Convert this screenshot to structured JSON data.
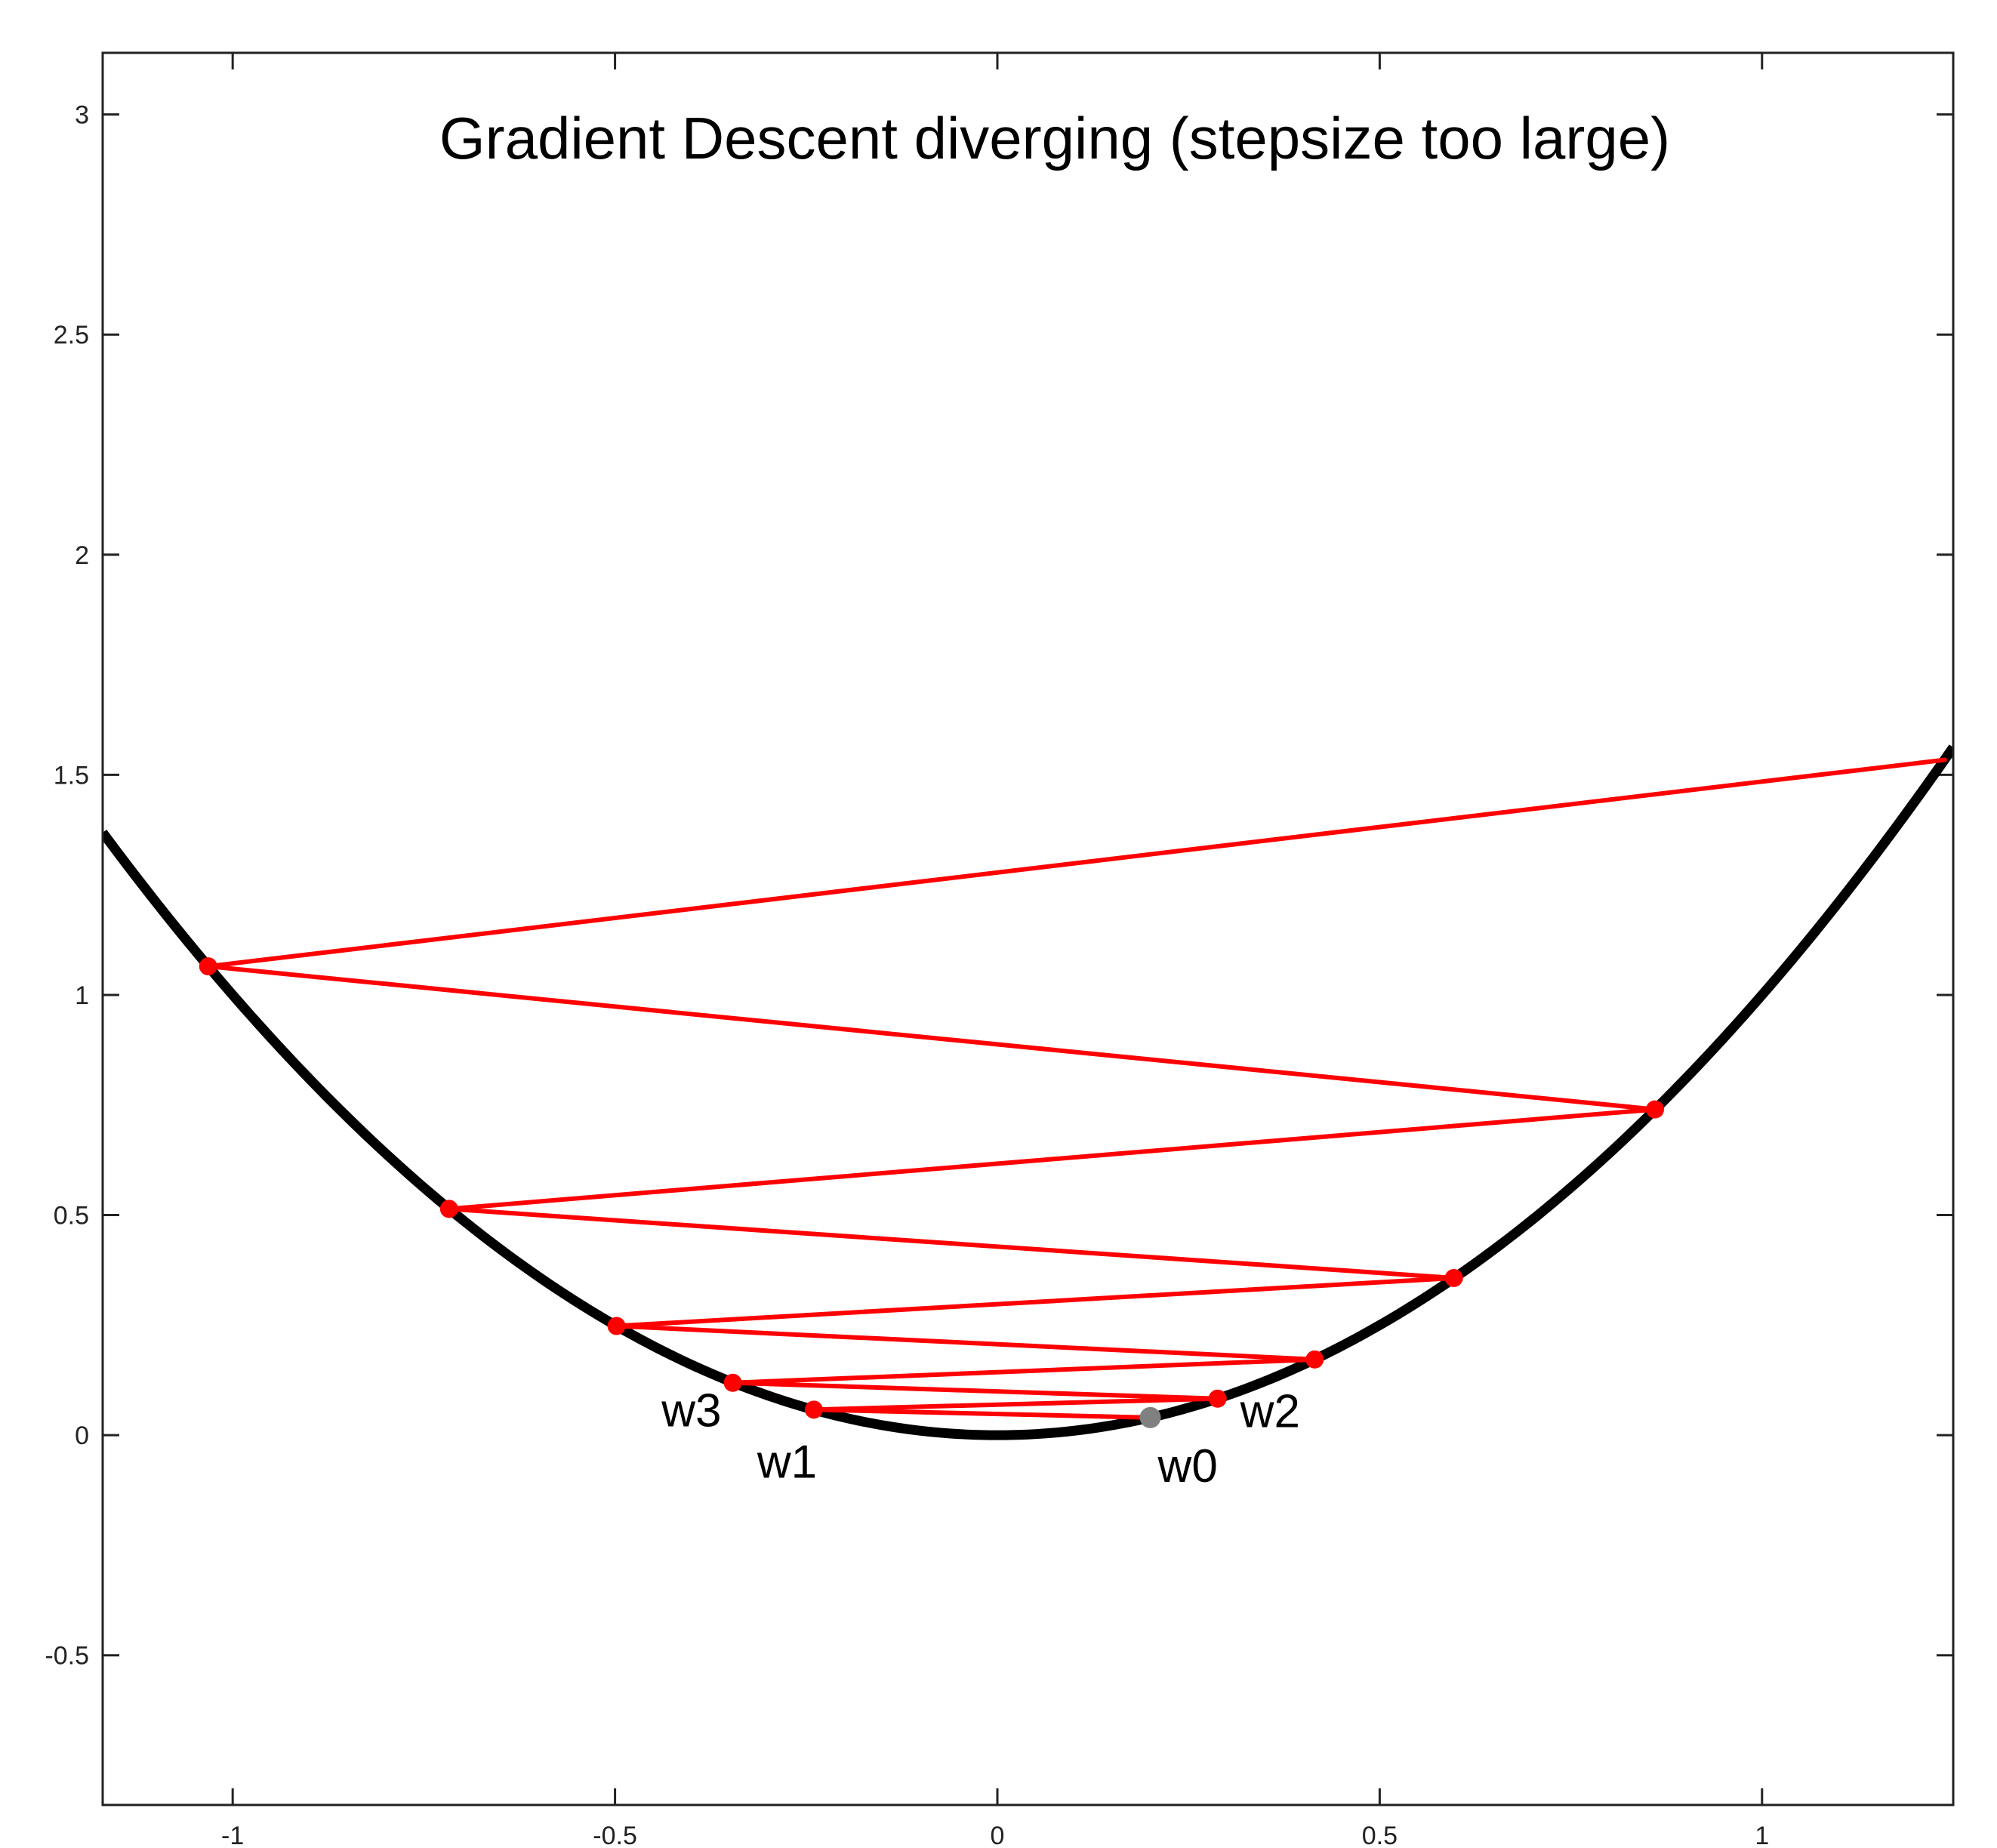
{
  "chart_data": {
    "type": "line",
    "title": "Gradient Descent diverging (stepsize too large)",
    "xlabel": "",
    "ylabel": "",
    "xlim": [
      -1.17,
      1.25
    ],
    "ylim": [
      -0.84,
      3.14
    ],
    "xticks": [
      -1,
      -0.5,
      0,
      0.5,
      1
    ],
    "xtick_labels": [
      "-1",
      "-0.5",
      "0",
      "0.5",
      "1"
    ],
    "yticks": [
      -0.5,
      0,
      0.5,
      1,
      1.5,
      2,
      2.5,
      3
    ],
    "ytick_labels": [
      "-0.5",
      "0",
      "0.5",
      "1",
      "1.5",
      "2",
      "2.5",
      "3"
    ],
    "grid": false,
    "box": true,
    "curve": {
      "function": "y = x^2",
      "x_range": [
        -1.17,
        1.25
      ],
      "color": "#000000"
    },
    "series": [
      {
        "type": "path",
        "color": "#ff0000",
        "x": [
          0.2,
          -0.24,
          0.288,
          -0.346,
          0.415,
          -0.498,
          0.597,
          -0.717,
          0.86,
          -1.032,
          1.239
        ],
        "y": [
          0.04,
          0.058,
          0.083,
          0.119,
          0.172,
          0.248,
          0.357,
          0.514,
          0.74,
          1.065,
          1.534
        ]
      }
    ],
    "start_point": {
      "x": 0.2,
      "y": 0.04,
      "color": "#808080"
    },
    "point_labels": [
      {
        "text": "w0",
        "x": 0.2,
        "y": 0.04
      },
      {
        "text": "w1",
        "x": -0.24,
        "y": 0.058
      },
      {
        "text": "w2",
        "x": 0.288,
        "y": 0.083
      },
      {
        "text": "w3",
        "x": -0.346,
        "y": 0.119
      }
    ]
  }
}
